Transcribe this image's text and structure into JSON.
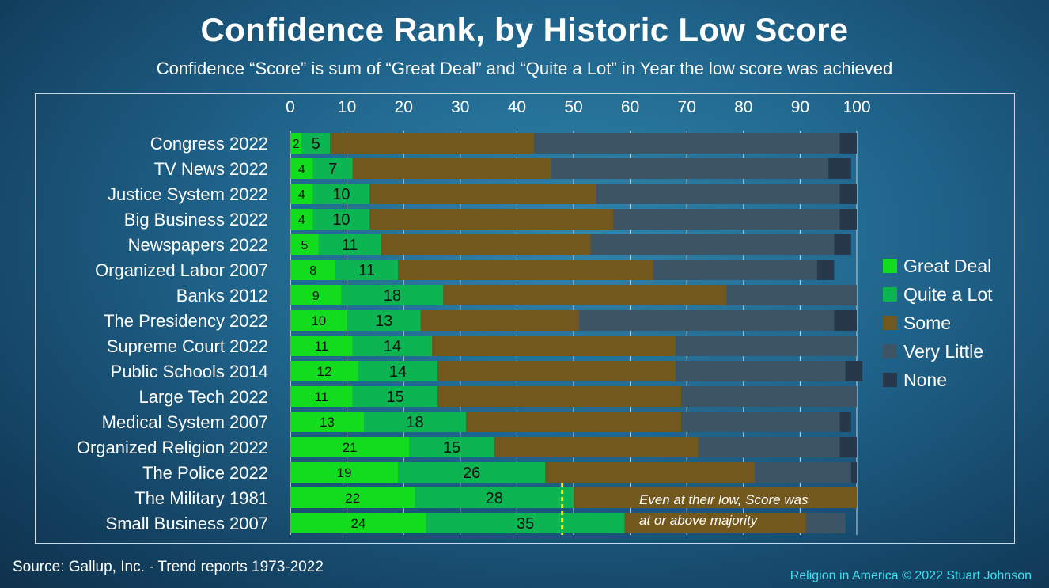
{
  "title": "Confidence Rank, by Historic Low Score",
  "subtitle": "Confidence “Score” is sum of “Great Deal” and “Quite a Lot” in Year the low score was achieved",
  "source": "Source: Gallup, Inc. - Trend reports 1973-2022",
  "credit": "Religion in America © 2022 Stuart Johnson",
  "chart_data": {
    "type": "bar",
    "orientation": "horizontal",
    "stacked": true,
    "title": "Confidence Rank, by Historic Low Score",
    "subtitle": "Confidence “Score” is sum of “Great Deal” and “Quite a Lot” in Year the low score was achieved",
    "xlim": [
      0,
      100
    ],
    "xticks": [
      0,
      10,
      20,
      30,
      40,
      50,
      60,
      70,
      80,
      90,
      100
    ],
    "x_axis_position": "top",
    "grid": true,
    "legend_position": "right",
    "categories": [
      "Congress 2022",
      "TV News 2022",
      "Justice System 2022",
      "Big Business 2022",
      "Newspapers 2022",
      "Organized Labor 2007",
      "Banks 2012",
      "The Presidency 2022",
      "Supreme Court 2022",
      "Public Schools 2014",
      "Large Tech 2022",
      "Medical System 2007",
      "Organized Religion 2022",
      "The Police 2022",
      "The Military 1981",
      "Small Business 2007"
    ],
    "series": [
      {
        "name": "Great Deal",
        "color": "#12dc1e",
        "values": [
          2,
          4,
          4,
          4,
          5,
          8,
          9,
          10,
          11,
          12,
          11,
          13,
          21,
          19,
          22,
          24
        ]
      },
      {
        "name": "Quite a Lot",
        "color": "#0db552",
        "values": [
          5,
          7,
          10,
          10,
          11,
          11,
          18,
          13,
          14,
          14,
          15,
          18,
          15,
          26,
          28,
          35
        ]
      },
      {
        "name": "Some",
        "color": "#73581d",
        "values": [
          36,
          35,
          40,
          43,
          37,
          45,
          50,
          28,
          43,
          42,
          43,
          38,
          36,
          37,
          50,
          32
        ]
      },
      {
        "name": "Very Little",
        "color": "#3c5463",
        "values": [
          54,
          49,
          43,
          40,
          43,
          29,
          23,
          45,
          32,
          30,
          31,
          28,
          25,
          17,
          0,
          7
        ]
      },
      {
        "name": "None",
        "color": "#26384a",
        "values": [
          3,
          4,
          3,
          3,
          3,
          3,
          0,
          4,
          0,
          3,
          0,
          2,
          3,
          1,
          0,
          0
        ]
      }
    ],
    "reference_line": {
      "x": 48,
      "color": "#f4f000",
      "style": "dashed"
    },
    "annotation": {
      "text_lines": [
        "Even at their low, Score was",
        "at or above majority"
      ]
    }
  }
}
